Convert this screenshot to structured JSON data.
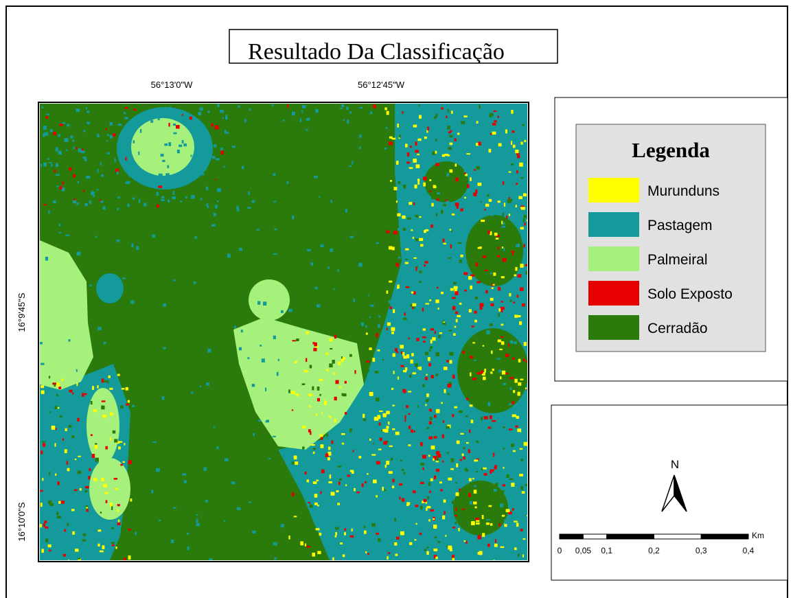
{
  "title": "Resultado Da Classificação",
  "map": {
    "x_labels": [
      "56°13'0\"W",
      "56°12'45\"W"
    ],
    "y_labels": [
      "16°9'45\"S",
      "16°10'0\"S"
    ]
  },
  "legend": {
    "title": "Legenda",
    "items": [
      {
        "name": "Murunduns",
        "color": "#ffff00"
      },
      {
        "name": "Pastagem",
        "color": "#149a9a"
      },
      {
        "name": "Palmeiral",
        "color": "#a6f07c"
      },
      {
        "name": "Solo Exposto",
        "color": "#e60000"
      },
      {
        "name": "Cerradão",
        "color": "#2a7a0c"
      }
    ]
  },
  "north": "N",
  "scale_bar": {
    "unit": "Km",
    "ticks": [
      {
        "value": 0,
        "label": "0"
      },
      {
        "value": 0.05,
        "label": "0,05"
      },
      {
        "value": 0.1,
        "label": "0,1"
      },
      {
        "value": 0.2,
        "label": "0,2"
      },
      {
        "value": 0.3,
        "label": "0,3"
      },
      {
        "value": 0.4,
        "label": "0,4"
      }
    ]
  }
}
